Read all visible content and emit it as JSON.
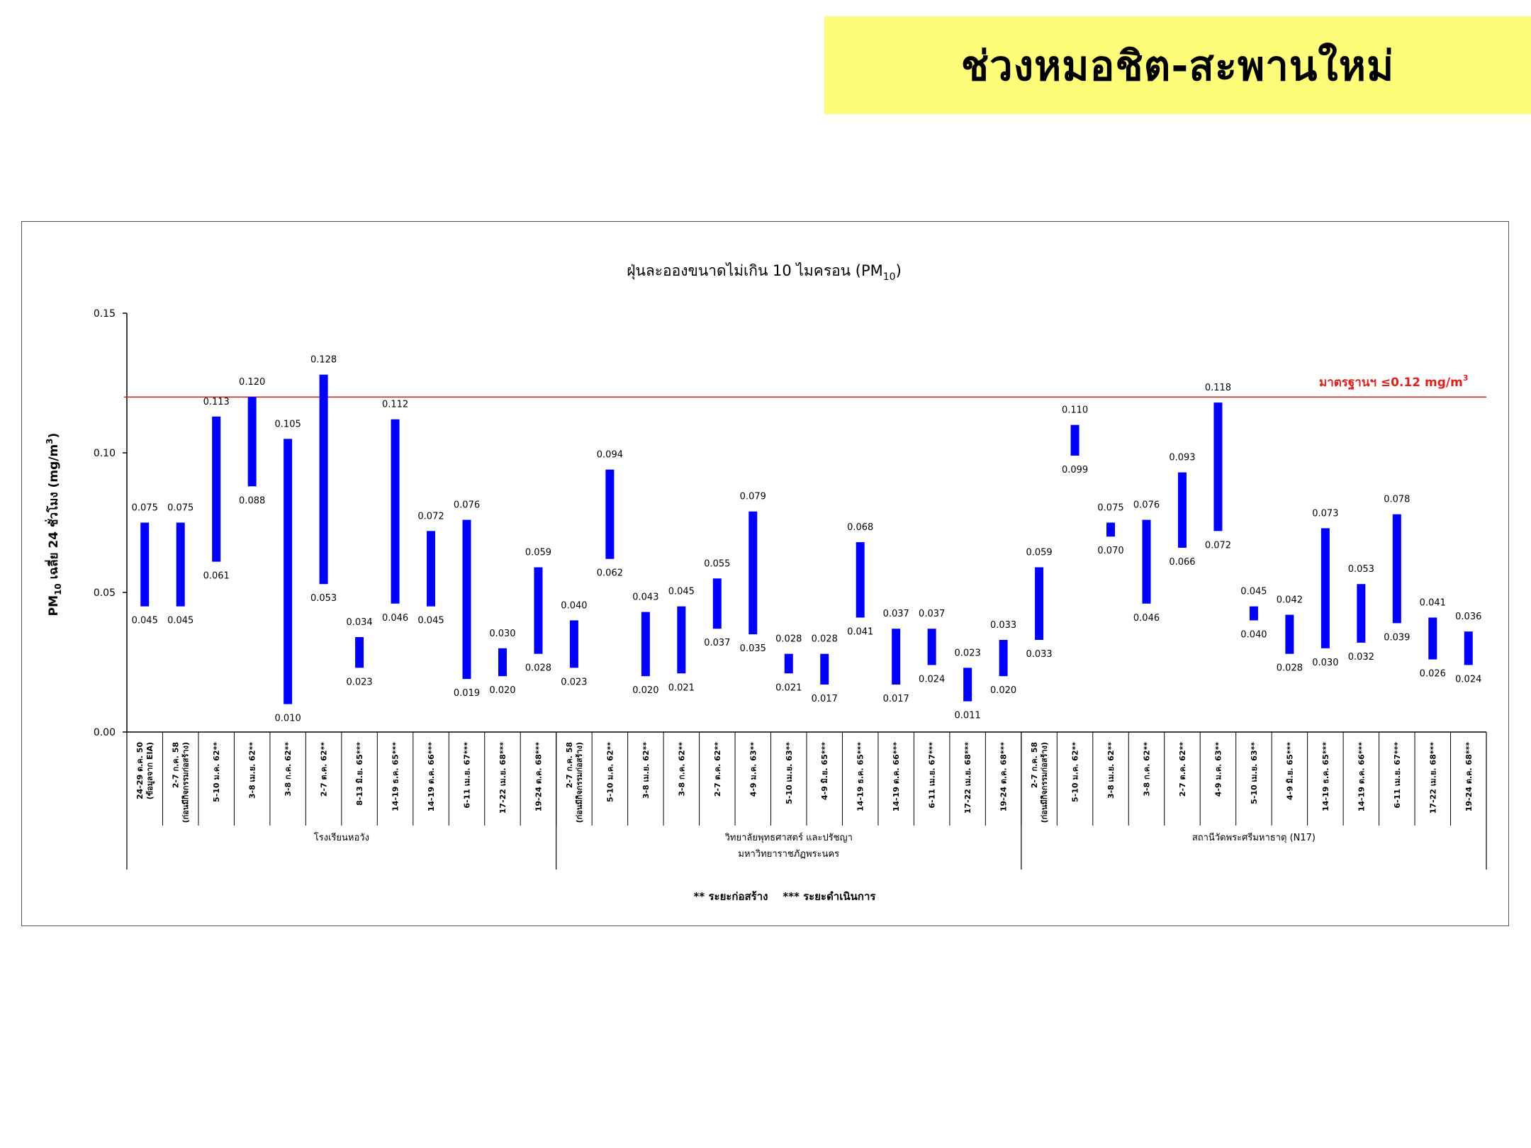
{
  "banner": {
    "title": "ช่วงหมอชิต-สะพานใหม่"
  },
  "chart_data": {
    "type": "bar",
    "subtype": "floating-range",
    "title": "ฝุ่นละอองขนาดไม่เกิน 10 ไมครอน (PM10)",
    "title_main": "ฝุ่นละอองขนาดไม่เกิน 10 ไมครอน (PM",
    "title_sub": "10",
    "title_end": ")",
    "ylabel": "PM10 เฉลี่ย 24 ชั่วโมง (mg/m3)",
    "ylabel_pm": "PM",
    "ylabel_sub": "10",
    "ylabel_mid": " เฉลี่ย 24 ชั่วโมง (mg/m",
    "ylabel_sup": "3",
    "ylabel_end": ")",
    "ylim": [
      0,
      0.15
    ],
    "yticks": [
      "0.00",
      "0.05",
      "0.10",
      "0.15"
    ],
    "bar_color": "#0000ff",
    "standard": {
      "value": 0.12,
      "label": "มาตรฐานฯ ≤0.12 mg/m",
      "label_sup": "3",
      "color": "#e0201b"
    },
    "footnote": "** ระยะก่อสร้าง    *** ระยะดำเนินการ",
    "groups": [
      {
        "name": "โรงเรียนหอวัง",
        "name2": "",
        "points": [
          {
            "l1": "24-29 ต.ค. 50",
            "l2": "(ข้อมูลจาก EIA)",
            "max": 0.075,
            "min": 0.045
          },
          {
            "l1": "2-7 ก.ค. 58",
            "l2": "(ก่อนมีกิจกรรมก่อสร้าง)",
            "max": 0.075,
            "min": 0.045
          },
          {
            "l1": "5-10 ม.ค. 62**",
            "l2": "",
            "max": 0.113,
            "min": 0.061
          },
          {
            "l1": "3-8 เม.ย. 62**",
            "l2": "",
            "max": 0.12,
            "min": 0.088
          },
          {
            "l1": "3-8 ก.ค. 62**",
            "l2": "",
            "max": 0.105,
            "min": 0.01
          },
          {
            "l1": "2-7 ต.ค. 62**",
            "l2": "",
            "max": 0.128,
            "min": 0.053
          },
          {
            "l1": "8-13 มิ.ย. 65***",
            "l2": "",
            "max": 0.034,
            "min": 0.023
          },
          {
            "l1": "14-19 ธ.ค. 65***",
            "l2": "",
            "max": 0.112,
            "min": 0.046
          },
          {
            "l1": "14-19 ต.ค. 66***",
            "l2": "",
            "max": 0.072,
            "min": 0.045
          },
          {
            "l1": "6-11 เม.ย. 67***",
            "l2": "",
            "max": 0.076,
            "min": 0.019
          },
          {
            "l1": "17-22 เม.ย. 68***",
            "l2": "",
            "max": 0.03,
            "min": 0.02
          },
          {
            "l1": "19-24 ต.ค. 68***",
            "l2": "",
            "max": 0.059,
            "min": 0.028
          }
        ]
      },
      {
        "name": "วิทยาลัยพุทธศาสตร์ และปรัชญา",
        "name2": "มหาวิทยาราชภัฏพระนคร",
        "points": [
          {
            "l1": "2-7 ก.ค. 58",
            "l2": "(ก่อนมีกิจกรรมก่อสร้าง)",
            "max": 0.04,
            "min": 0.023
          },
          {
            "l1": "5-10 ม.ค. 62**",
            "l2": "",
            "max": 0.094,
            "min": 0.062
          },
          {
            "l1": "3-8 เม.ย. 62**",
            "l2": "",
            "max": 0.043,
            "min": 0.02
          },
          {
            "l1": "3-8 ก.ค. 62**",
            "l2": "",
            "max": 0.045,
            "min": 0.021
          },
          {
            "l1": "2-7 ต.ค. 62**",
            "l2": "",
            "max": 0.055,
            "min": 0.037
          },
          {
            "l1": "4-9 ม.ค. 63**",
            "l2": "",
            "max": 0.079,
            "min": 0.035
          },
          {
            "l1": "5-10 เม.ย. 63**",
            "l2": "",
            "max": 0.028,
            "min": 0.021
          },
          {
            "l1": "4-9 มิ.ย. 65***",
            "l2": "",
            "max": 0.028,
            "min": 0.017
          },
          {
            "l1": "14-19 ธ.ค. 65***",
            "l2": "",
            "max": 0.068,
            "min": 0.041
          },
          {
            "l1": "14-19 ต.ค. 66***",
            "l2": "",
            "max": 0.037,
            "min": 0.017
          },
          {
            "l1": "6-11 เม.ย. 67***",
            "l2": "",
            "max": 0.037,
            "min": 0.024
          },
          {
            "l1": "17-22 เม.ย. 68***",
            "l2": "",
            "max": 0.023,
            "min": 0.011
          },
          {
            "l1": "19-24 ต.ค. 68***",
            "l2": "",
            "max": 0.033,
            "min": 0.02
          }
        ]
      },
      {
        "name": "สถานีวัดพระศรีมหาธาตุ (N17)",
        "name2": "",
        "points": [
          {
            "l1": "2-7 ก.ค. 58",
            "l2": "(ก่อนมีกิจกรรมก่อสร้าง)",
            "max": 0.059,
            "min": 0.033
          },
          {
            "l1": "5-10 ม.ค. 62**",
            "l2": "",
            "max": 0.11,
            "min": 0.099
          },
          {
            "l1": "3-8 เม.ย. 62**",
            "l2": "",
            "max": 0.075,
            "min": 0.07
          },
          {
            "l1": "3-8 ก.ค. 62**",
            "l2": "",
            "max": 0.076,
            "min": 0.046
          },
          {
            "l1": "2-7 ต.ค. 62**",
            "l2": "",
            "max": 0.093,
            "min": 0.066
          },
          {
            "l1": "4-9 ม.ค. 63**",
            "l2": "",
            "max": 0.118,
            "min": 0.072
          },
          {
            "l1": "5-10 เม.ย. 63**",
            "l2": "",
            "max": 0.045,
            "min": 0.04
          },
          {
            "l1": "4-9 มิ.ย. 65***",
            "l2": "",
            "max": 0.042,
            "min": 0.028
          },
          {
            "l1": "14-19 ธ.ค. 65***",
            "l2": "",
            "max": 0.073,
            "min": 0.03
          },
          {
            "l1": "14-19 ต.ค. 66***",
            "l2": "",
            "max": 0.053,
            "min": 0.032
          },
          {
            "l1": "6-11 เม.ย. 67***",
            "l2": "",
            "max": 0.078,
            "min": 0.039
          },
          {
            "l1": "17-22 เม.ย. 68***",
            "l2": "",
            "max": 0.041,
            "min": 0.026
          },
          {
            "l1": "19-24 ต.ค. 68***",
            "l2": "",
            "max": 0.036,
            "min": 0.024
          }
        ]
      }
    ]
  }
}
